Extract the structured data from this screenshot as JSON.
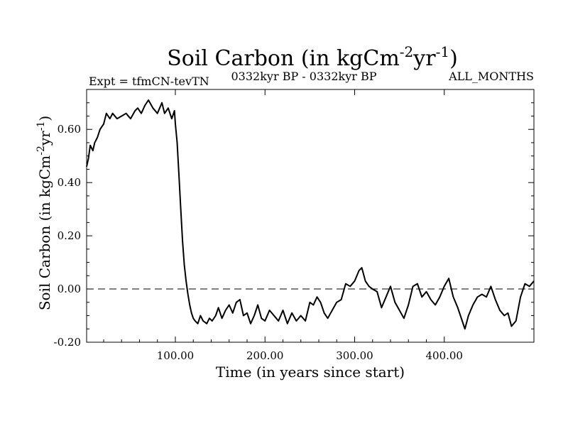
{
  "chart_data": {
    "type": "line",
    "title": "Soil Carbon (in kgCm",
    "title_sup1": "-2",
    "title_mid": "yr",
    "title_sup2": "-1",
    "title_end": ")",
    "subtitle_left": "Expt = tfmCN-tevTN",
    "subtitle_center": "0332kyr BP - 0332kyr BP",
    "subtitle_right": "ALL_MONTHS",
    "xlabel": "Time (in years since start)",
    "ylabel": "Soil Carbon (in kgCm",
    "ylabel_sup1": "-2",
    "ylabel_mid": "yr",
    "ylabel_sup2": "-1",
    "ylabel_end": ")",
    "xlim": [
      1,
      500
    ],
    "ylim": [
      -0.2,
      0.75
    ],
    "x_ticks": [
      100,
      200,
      300,
      400
    ],
    "x_tick_labels": [
      "100.00",
      "200.00",
      "300.00",
      "400.00"
    ],
    "y_ticks": [
      -0.2,
      0,
      0.2,
      0.4,
      0.6
    ],
    "y_tick_labels": [
      "-0.20",
      "0.00",
      "0.20",
      "0.40",
      "0.60"
    ],
    "reference_line": 0,
    "series": [
      {
        "x": [
          1,
          3,
          5,
          8,
          10,
          13,
          16,
          20,
          23,
          27,
          30,
          35,
          40,
          45,
          50,
          55,
          58,
          62,
          66,
          70,
          75,
          80,
          85,
          88,
          92,
          96,
          99,
          100,
          102,
          104,
          106,
          108,
          110,
          112,
          114,
          116,
          118,
          120,
          122,
          125,
          128,
          131,
          135,
          138,
          141,
          145,
          148,
          152,
          156,
          160,
          164,
          168,
          172,
          176,
          180,
          184,
          188,
          192,
          196,
          200,
          205,
          210,
          215,
          220,
          225,
          230,
          235,
          240,
          245,
          250,
          254,
          258,
          262,
          266,
          270,
          275,
          280,
          285,
          290,
          295,
          300,
          305,
          308,
          312,
          316,
          320,
          325,
          330,
          335,
          340,
          345,
          350,
          355,
          360,
          365,
          370,
          375,
          380,
          385,
          390,
          395,
          400,
          405,
          410,
          415,
          420,
          423,
          427,
          432,
          437,
          442,
          447,
          452,
          457,
          462,
          467,
          471,
          475,
          480,
          485,
          490,
          495,
          500
        ],
        "y": [
          0.46,
          0.49,
          0.54,
          0.52,
          0.55,
          0.57,
          0.6,
          0.62,
          0.66,
          0.64,
          0.66,
          0.64,
          0.65,
          0.66,
          0.64,
          0.67,
          0.68,
          0.66,
          0.69,
          0.71,
          0.68,
          0.66,
          0.7,
          0.66,
          0.68,
          0.64,
          0.67,
          0.62,
          0.55,
          0.43,
          0.3,
          0.18,
          0.09,
          0.03,
          -0.02,
          -0.06,
          -0.09,
          -0.11,
          -0.12,
          -0.13,
          -0.1,
          -0.12,
          -0.13,
          -0.11,
          -0.12,
          -0.1,
          -0.07,
          -0.11,
          -0.08,
          -0.06,
          -0.09,
          -0.05,
          -0.04,
          -0.1,
          -0.09,
          -0.13,
          -0.1,
          -0.06,
          -0.11,
          -0.12,
          -0.08,
          -0.1,
          -0.12,
          -0.08,
          -0.13,
          -0.09,
          -0.12,
          -0.1,
          -0.12,
          -0.05,
          -0.06,
          -0.03,
          -0.05,
          -0.09,
          -0.11,
          -0.08,
          -0.05,
          -0.04,
          0.02,
          0.01,
          0.03,
          0.07,
          0.08,
          0.03,
          0.01,
          0.0,
          -0.01,
          -0.07,
          -0.03,
          0.01,
          -0.05,
          -0.08,
          -0.11,
          -0.06,
          0.01,
          0.02,
          -0.03,
          -0.01,
          -0.04,
          -0.06,
          -0.03,
          0.01,
          0.04,
          -0.03,
          -0.07,
          -0.12,
          -0.15,
          -0.1,
          -0.06,
          -0.03,
          -0.02,
          -0.03,
          0.01,
          -0.04,
          -0.08,
          -0.1,
          -0.09,
          -0.14,
          -0.12,
          -0.03,
          0.02,
          0.01,
          0.03
        ]
      }
    ],
    "grid": false,
    "legend": "none"
  }
}
